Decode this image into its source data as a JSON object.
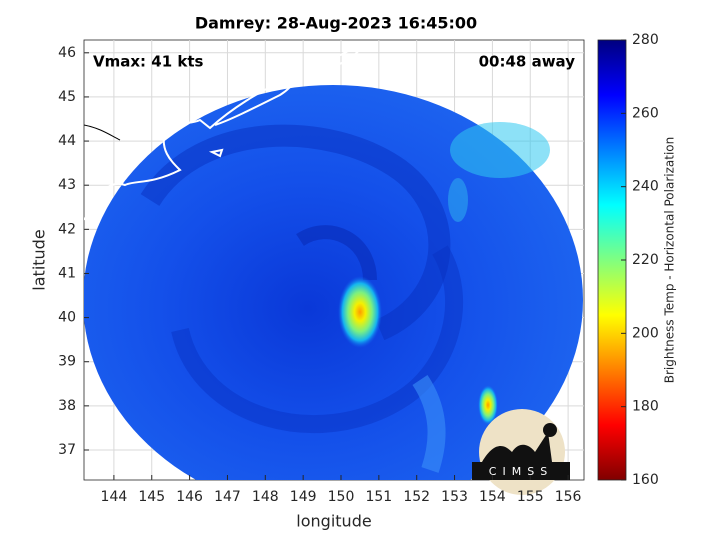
{
  "title": "Damrey: 28-Aug-2023 16:45:00",
  "annotations": {
    "vmax": "Vmax: 41 kts",
    "time_away": "00:48 away"
  },
  "x_axis": {
    "label": "longitude",
    "lim": [
      143.21,
      156.42
    ],
    "ticks": [
      144,
      145,
      146,
      147,
      148,
      149,
      150,
      151,
      152,
      153,
      154,
      155,
      156
    ]
  },
  "y_axis": {
    "label": "latitude",
    "lim": [
      36.32,
      46.29
    ],
    "ticks": [
      37,
      38,
      39,
      40,
      41,
      42,
      43,
      44,
      45,
      46
    ]
  },
  "grid": true,
  "colorbar": {
    "label": "Brightness Temp - Horizontal Polarization",
    "lim": [
      160,
      280
    ],
    "ticks": [
      160,
      180,
      200,
      220,
      240,
      260,
      280
    ],
    "colormap": [
      "#800000",
      "#ff0000",
      "#ff8000",
      "#ffff00",
      "#80ff80",
      "#00ffff",
      "#0080ff",
      "#0000ff",
      "#000080"
    ]
  },
  "logo": "CIMSS"
}
